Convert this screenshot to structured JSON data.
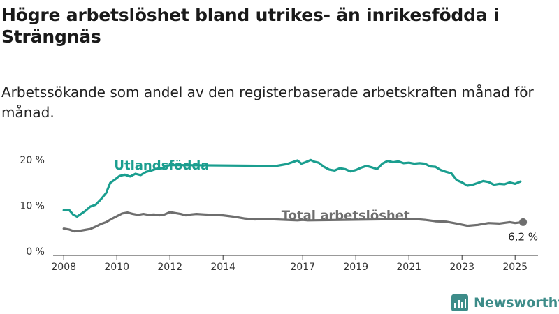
{
  "title": "Högre arbetslöshet bland utrikes- än inrikesfödda i Strängnäs",
  "subtitle": "Arbetssökande som andel av den registerbaserade arbetskraften månad för månad.",
  "brand": "Newsworthy",
  "colors": {
    "utlandsfodda": "#1a9e8f",
    "total": "#6e6e6e",
    "brand": "#3d8c89"
  },
  "chart_data": {
    "type": "line",
    "x_unit": "year (decimal)",
    "xlim": [
      2007.6,
      2025.6
    ],
    "ylim": [
      0,
      20
    ],
    "x_ticks": [
      2008,
      2010,
      2012,
      2014,
      2017,
      2019,
      2021,
      2023,
      2025
    ],
    "y_ticks": [
      {
        "value": 0,
        "label": "0 %"
      },
      {
        "value": 10,
        "label": "10 %"
      },
      {
        "value": 20,
        "label": "20 %"
      }
    ],
    "grid": false,
    "series": [
      {
        "name": "Utlandsfödda",
        "color": "#1a9e8f",
        "label_at": [
          2009.9,
          17.7
        ],
        "points": [
          [
            2008.0,
            8.8
          ],
          [
            2008.2,
            8.9
          ],
          [
            2008.35,
            7.9
          ],
          [
            2008.5,
            7.4
          ],
          [
            2008.65,
            8.0
          ],
          [
            2008.8,
            8.6
          ],
          [
            2009.0,
            9.6
          ],
          [
            2009.2,
            10.0
          ],
          [
            2009.4,
            11.2
          ],
          [
            2009.6,
            12.6
          ],
          [
            2009.75,
            14.8
          ],
          [
            2009.9,
            15.4
          ],
          [
            2010.1,
            16.3
          ],
          [
            2010.3,
            16.6
          ],
          [
            2010.5,
            16.2
          ],
          [
            2010.7,
            16.8
          ],
          [
            2010.9,
            16.5
          ],
          [
            2011.1,
            17.2
          ],
          [
            2011.3,
            17.5
          ],
          [
            2011.5,
            17.9
          ],
          [
            2011.7,
            18.0
          ],
          [
            2011.85,
            18.4
          ],
          [
            2012.0,
            18.7
          ],
          [
            2016.0,
            18.5
          ],
          [
            2016.2,
            18.7
          ],
          [
            2016.4,
            18.9
          ],
          [
            2016.6,
            19.3
          ],
          [
            2016.8,
            19.7
          ],
          [
            2016.95,
            19.0
          ],
          [
            2017.1,
            19.3
          ],
          [
            2017.3,
            19.8
          ],
          [
            2017.45,
            19.4
          ],
          [
            2017.6,
            19.2
          ],
          [
            2017.8,
            18.3
          ],
          [
            2018.0,
            17.7
          ],
          [
            2018.2,
            17.5
          ],
          [
            2018.4,
            18.0
          ],
          [
            2018.6,
            17.8
          ],
          [
            2018.8,
            17.3
          ],
          [
            2019.0,
            17.6
          ],
          [
            2019.2,
            18.1
          ],
          [
            2019.4,
            18.5
          ],
          [
            2019.6,
            18.2
          ],
          [
            2019.8,
            17.8
          ],
          [
            2020.0,
            19.0
          ],
          [
            2020.2,
            19.6
          ],
          [
            2020.4,
            19.3
          ],
          [
            2020.6,
            19.5
          ],
          [
            2020.8,
            19.1
          ],
          [
            2021.0,
            19.2
          ],
          [
            2021.2,
            19.0
          ],
          [
            2021.4,
            19.1
          ],
          [
            2021.6,
            19.0
          ],
          [
            2021.8,
            18.4
          ],
          [
            2022.0,
            18.3
          ],
          [
            2022.2,
            17.6
          ],
          [
            2022.4,
            17.2
          ],
          [
            2022.6,
            16.9
          ],
          [
            2022.8,
            15.4
          ],
          [
            2023.0,
            14.9
          ],
          [
            2023.2,
            14.2
          ],
          [
            2023.4,
            14.4
          ],
          [
            2023.6,
            14.8
          ],
          [
            2023.8,
            15.2
          ],
          [
            2024.0,
            15.0
          ],
          [
            2024.2,
            14.4
          ],
          [
            2024.4,
            14.6
          ],
          [
            2024.6,
            14.5
          ],
          [
            2024.8,
            14.9
          ],
          [
            2025.0,
            14.6
          ],
          [
            2025.2,
            15.1
          ]
        ]
      },
      {
        "name": "Total arbetslöshet",
        "color": "#6e6e6e",
        "label_at": [
          2016.2,
          6.8
        ],
        "end_label": "6,2 %",
        "points": [
          [
            2008.0,
            4.8
          ],
          [
            2008.2,
            4.6
          ],
          [
            2008.4,
            4.2
          ],
          [
            2008.6,
            4.3
          ],
          [
            2008.8,
            4.5
          ],
          [
            2009.0,
            4.7
          ],
          [
            2009.2,
            5.2
          ],
          [
            2009.4,
            5.8
          ],
          [
            2009.6,
            6.2
          ],
          [
            2009.8,
            6.9
          ],
          [
            2010.0,
            7.5
          ],
          [
            2010.2,
            8.1
          ],
          [
            2010.4,
            8.3
          ],
          [
            2010.6,
            8.0
          ],
          [
            2010.8,
            7.8
          ],
          [
            2011.0,
            8.0
          ],
          [
            2011.2,
            7.8
          ],
          [
            2011.4,
            7.9
          ],
          [
            2011.6,
            7.7
          ],
          [
            2011.8,
            7.9
          ],
          [
            2012.0,
            8.4
          ],
          [
            2012.2,
            8.2
          ],
          [
            2012.4,
            8.0
          ],
          [
            2012.6,
            7.7
          ],
          [
            2012.8,
            7.9
          ],
          [
            2013.0,
            8.0
          ],
          [
            2013.3,
            7.9
          ],
          [
            2013.6,
            7.8
          ],
          [
            2014.0,
            7.7
          ],
          [
            2014.4,
            7.4
          ],
          [
            2014.8,
            7.0
          ],
          [
            2015.2,
            6.8
          ],
          [
            2015.6,
            6.9
          ],
          [
            2016.0,
            6.8
          ],
          [
            2016.4,
            6.7
          ],
          [
            2016.8,
            6.6
          ],
          [
            2017.0,
            6.7
          ],
          [
            2017.2,
            6.6
          ],
          [
            2021.2,
            6.9
          ],
          [
            2021.6,
            6.7
          ],
          [
            2022.0,
            6.4
          ],
          [
            2022.4,
            6.3
          ],
          [
            2022.8,
            5.9
          ],
          [
            2023.2,
            5.4
          ],
          [
            2023.6,
            5.6
          ],
          [
            2024.0,
            6.0
          ],
          [
            2024.4,
            5.9
          ],
          [
            2024.8,
            6.2
          ],
          [
            2025.0,
            6.0
          ],
          [
            2025.3,
            6.2
          ]
        ]
      }
    ]
  }
}
